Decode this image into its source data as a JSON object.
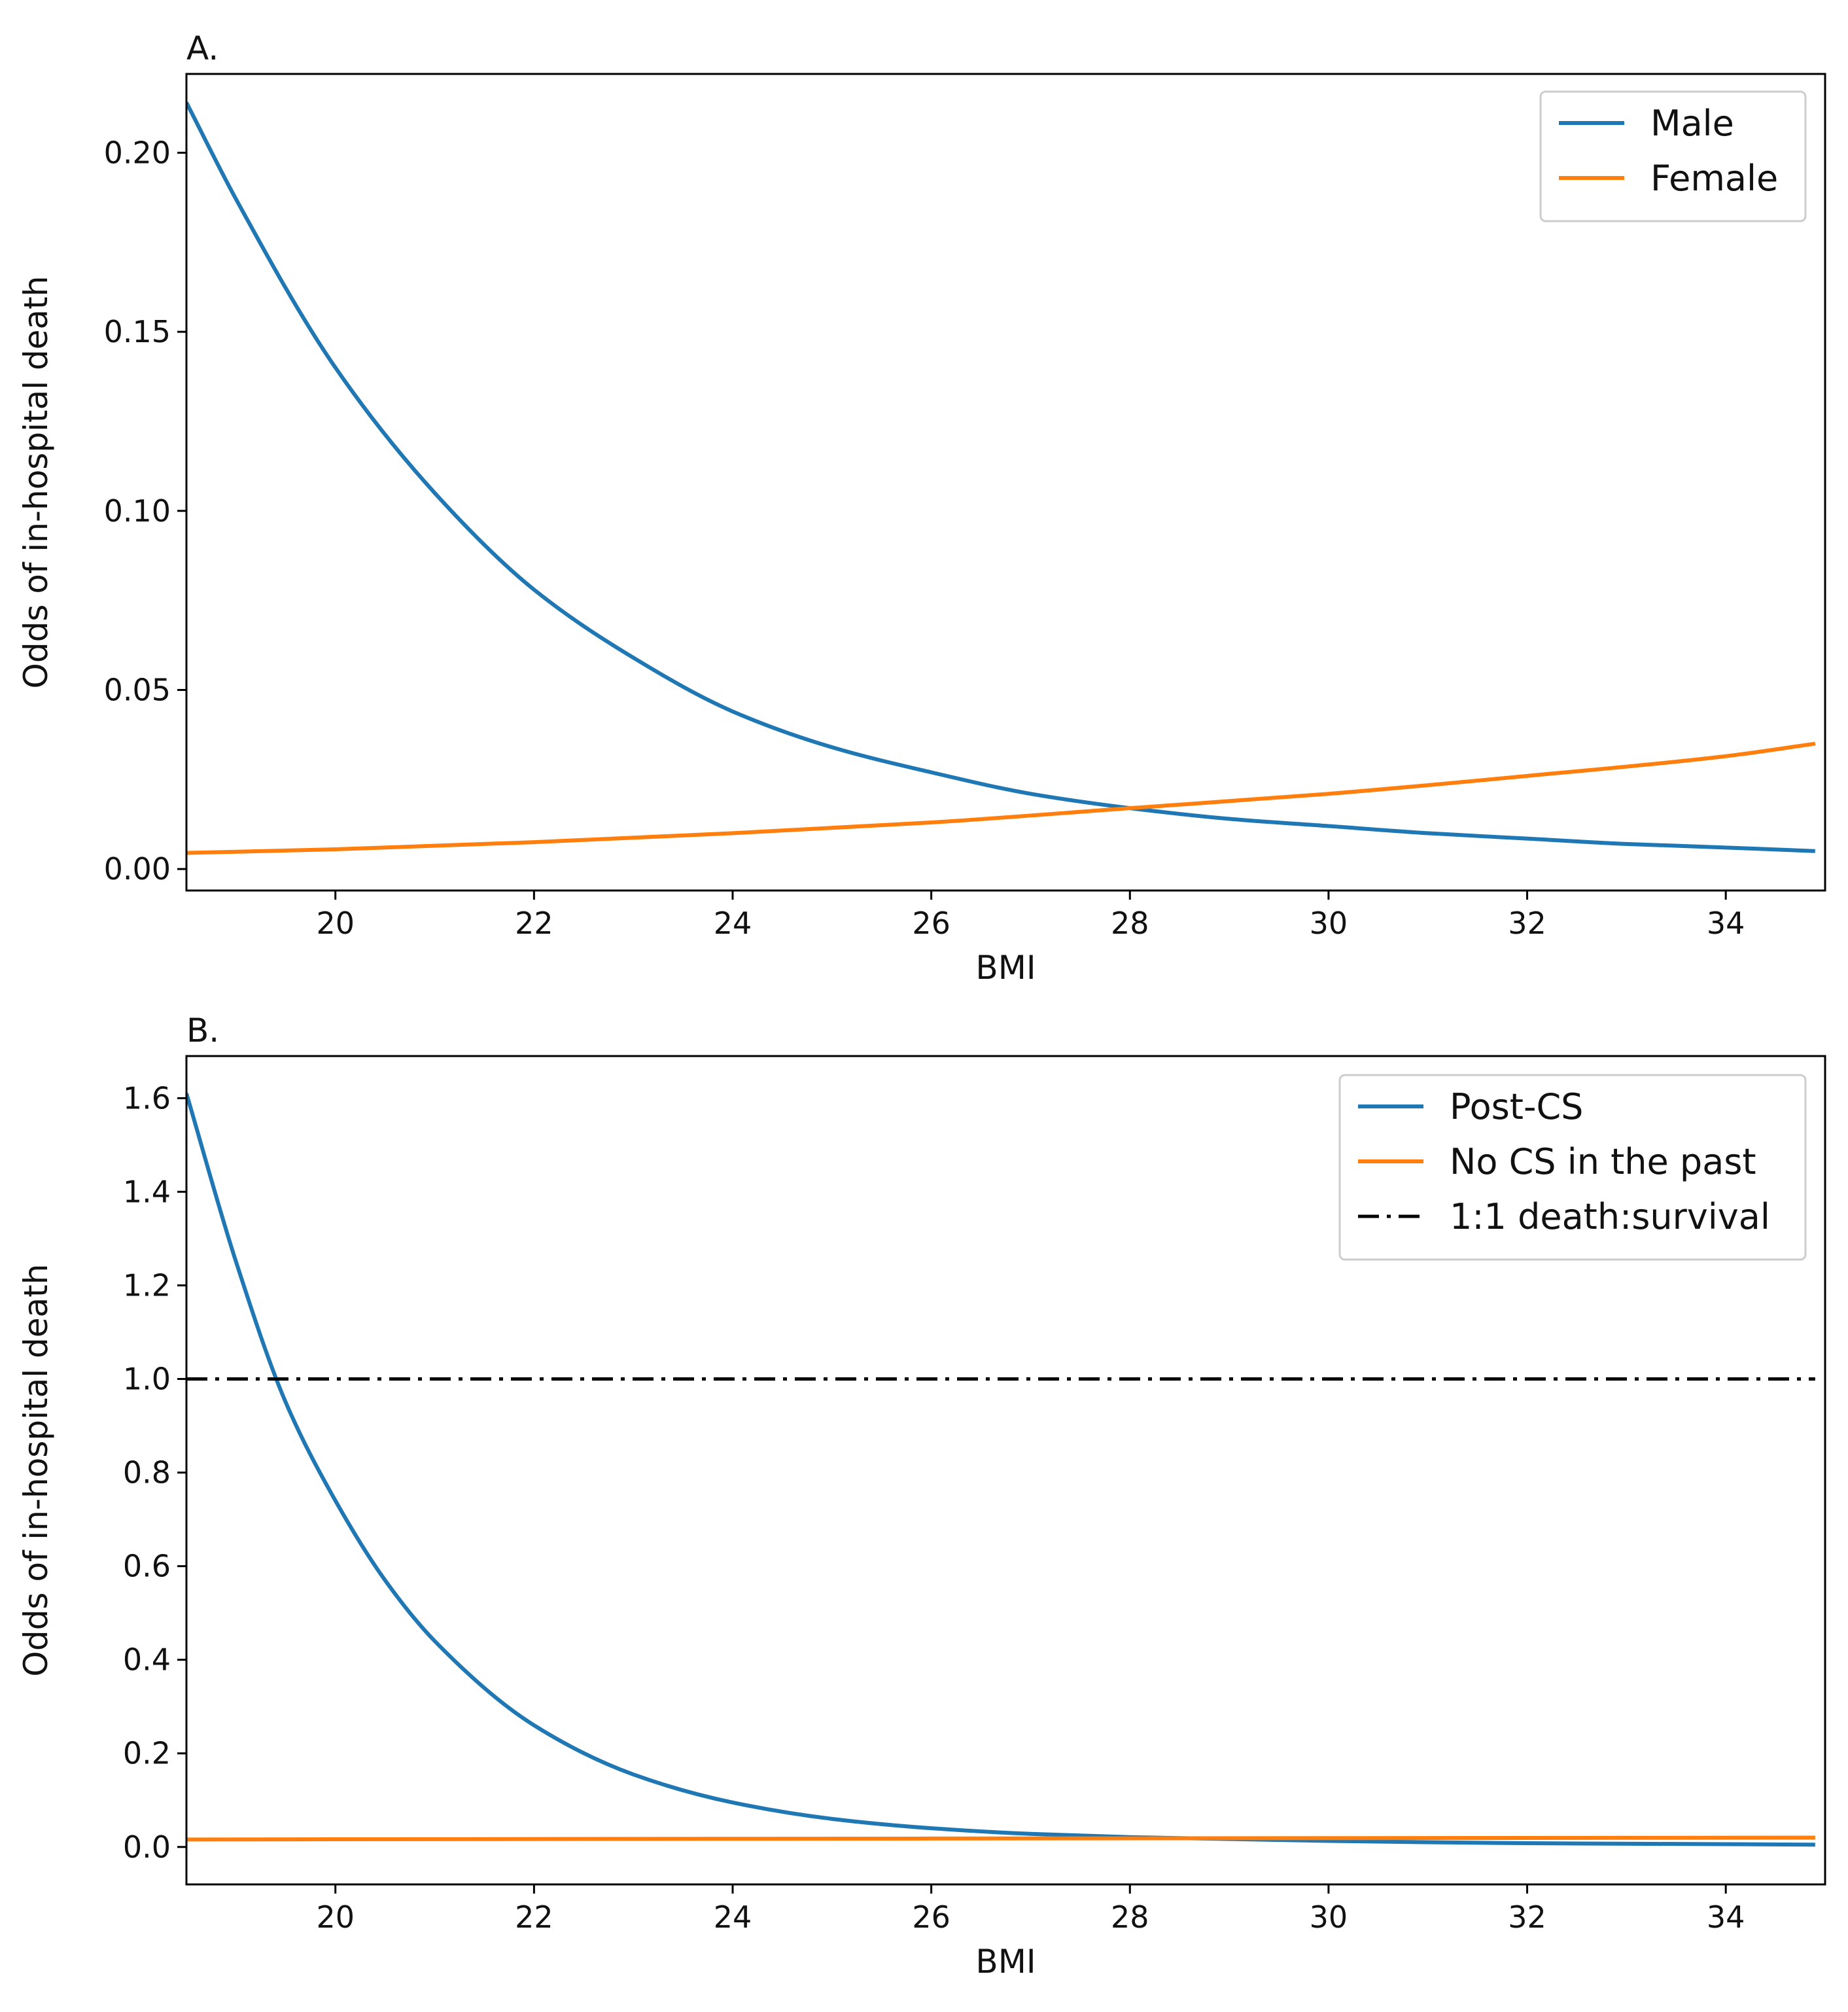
{
  "figure": {
    "colors": {
      "series_blue": "#1f77b4",
      "series_orange": "#ff7f0e",
      "reference_line": "#000000",
      "axes": "#000000",
      "legend_border": "#cccccc"
    }
  },
  "chart_data": [
    {
      "type": "line",
      "title": "A.",
      "xlabel": "BMI",
      "ylabel": "Odds of in-hospital death",
      "xlim": [
        18.5,
        35.0
      ],
      "ylim": [
        -0.006,
        0.222
      ],
      "xticks": [
        20,
        22,
        24,
        26,
        28,
        30,
        32,
        34
      ],
      "xtick_labels": [
        "20",
        "22",
        "24",
        "26",
        "28",
        "30",
        "32",
        "34"
      ],
      "yticks": [
        0.0,
        0.05,
        0.1,
        0.15,
        0.2
      ],
      "ytick_labels": [
        "0.00",
        "0.05",
        "0.10",
        "0.15",
        "0.20"
      ],
      "legend_position": "upper right",
      "series": [
        {
          "name": "Male",
          "color": "#1f77b4",
          "style": "solid",
          "x": [
            18.5,
            19,
            20,
            21,
            22,
            23,
            24,
            25,
            26,
            27,
            28,
            29,
            30,
            31,
            32,
            33,
            34,
            34.9
          ],
          "y": [
            0.214,
            0.187,
            0.14,
            0.105,
            0.078,
            0.059,
            0.044,
            0.034,
            0.027,
            0.021,
            0.017,
            0.014,
            0.012,
            0.01,
            0.0085,
            0.007,
            0.006,
            0.005
          ]
        },
        {
          "name": "Female",
          "color": "#ff7f0e",
          "style": "solid",
          "x": [
            18.5,
            20,
            22,
            24,
            26,
            28,
            30,
            32,
            34,
            34.9
          ],
          "y": [
            0.0045,
            0.0055,
            0.0075,
            0.01,
            0.013,
            0.017,
            0.021,
            0.026,
            0.0315,
            0.035
          ]
        }
      ]
    },
    {
      "type": "line",
      "title": "B.",
      "xlabel": "BMI",
      "ylabel": "Odds of in-hospital death",
      "xlim": [
        18.5,
        35.0
      ],
      "ylim": [
        -0.08,
        1.69
      ],
      "xticks": [
        20,
        22,
        24,
        26,
        28,
        30,
        32,
        34
      ],
      "xtick_labels": [
        "20",
        "22",
        "24",
        "26",
        "28",
        "30",
        "32",
        "34"
      ],
      "yticks": [
        0.0,
        0.2,
        0.4,
        0.6,
        0.8,
        1.0,
        1.2,
        1.4,
        1.6
      ],
      "ytick_labels": [
        "0.0",
        "0.2",
        "0.4",
        "0.6",
        "0.8",
        "1.0",
        "1.2",
        "1.4",
        "1.6"
      ],
      "legend_position": "upper right",
      "series": [
        {
          "name": "Post-CS",
          "color": "#1f77b4",
          "style": "solid",
          "x": [
            18.5,
            19,
            19.5,
            20,
            20.5,
            21,
            22,
            23,
            24,
            25,
            26,
            27,
            28,
            30,
            32,
            34,
            34.9
          ],
          "y": [
            1.61,
            1.25,
            0.95,
            0.74,
            0.57,
            0.44,
            0.26,
            0.155,
            0.095,
            0.06,
            0.04,
            0.028,
            0.021,
            0.013,
            0.008,
            0.006,
            0.005
          ]
        },
        {
          "name": "No CS in the past",
          "color": "#ff7f0e",
          "style": "solid",
          "x": [
            18.5,
            22,
            26,
            30,
            34.9
          ],
          "y": [
            0.016,
            0.017,
            0.018,
            0.019,
            0.02
          ]
        },
        {
          "name": "1:1 death:survival",
          "color": "#000000",
          "style": "dashdot",
          "x": [
            18.5,
            34.9
          ],
          "y": [
            1.0,
            1.0
          ]
        }
      ]
    }
  ]
}
